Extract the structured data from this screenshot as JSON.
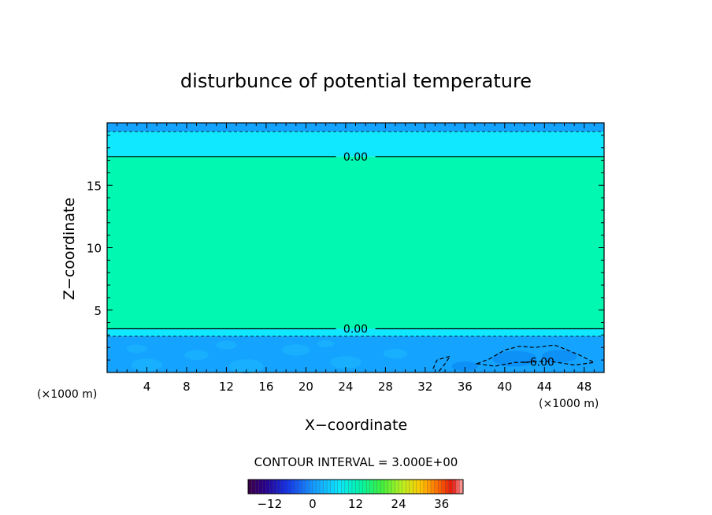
{
  "chart_data": {
    "type": "heatmap",
    "title": "disturbunce of potential temperature",
    "xlabel": "X−coordinate",
    "ylabel": "Z−coordinate",
    "x_unit": "(×1000 m)",
    "z_unit": "(×1000 m)",
    "xlim": [
      0,
      50
    ],
    "ylim": [
      0,
      20
    ],
    "x_ticks": [
      "4",
      "8",
      "12",
      "16",
      "20",
      "24",
      "28",
      "32",
      "36",
      "40",
      "44",
      "48"
    ],
    "y_ticks": [
      "5",
      "10",
      "15"
    ],
    "contour_interval_text": "CONTOUR INTERVAL = 3.000E+00",
    "contour_labels": [
      "0.00",
      "0.00",
      "−6.00"
    ],
    "zero_contour_heights": [
      17.3,
      3.5
    ],
    "dashed_contour_heights": [
      19.3,
      2.9
    ],
    "colorbar": {
      "min": -18,
      "max": 42,
      "tick_labels": [
        "−12",
        "0",
        "12",
        "24",
        "36"
      ],
      "tick_values": [
        -12,
        0,
        12,
        24,
        36
      ]
    },
    "field_bands": [
      {
        "z_range": [
          19.3,
          20.0
        ],
        "value": -3,
        "color": "#14a3ff"
      },
      {
        "z_range": [
          17.3,
          19.3
        ],
        "value": 0,
        "color": "#10e8ff"
      },
      {
        "z_range": [
          3.5,
          17.3
        ],
        "value": 3,
        "color": "#00f8b0"
      },
      {
        "z_range": [
          2.9,
          3.5
        ],
        "value": 0,
        "color": "#10e8ff"
      },
      {
        "z_range": [
          0.0,
          2.9
        ],
        "value": -3,
        "color": "#14a3ff"
      }
    ],
    "grid": false
  }
}
